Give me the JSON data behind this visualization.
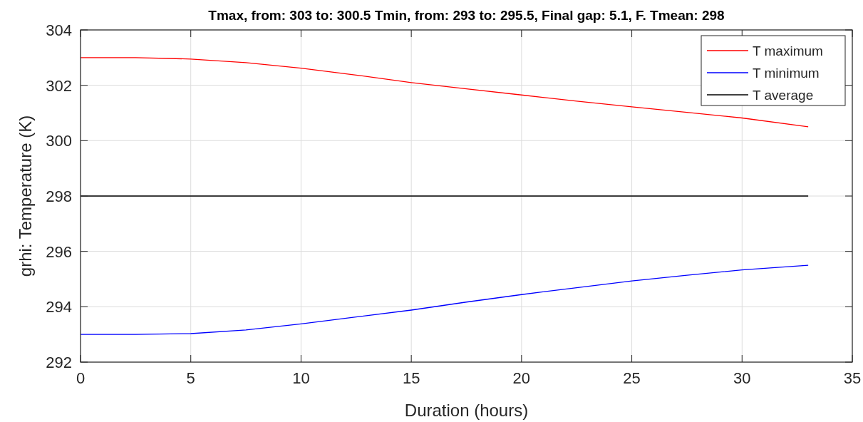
{
  "chart_data": {
    "type": "line",
    "title": "Tmax, from: 303 to: 300.5 Tmin, from: 293 to: 295.5, Final gap: 5.1, F. Tmean: 298",
    "xlabel": "Duration (hours)",
    "ylabel": "grhi: Temperature (K)",
    "x": [
      0,
      2.5,
      5,
      7.5,
      10,
      12.5,
      15,
      17.5,
      20,
      22.5,
      25,
      27.5,
      30,
      33
    ],
    "series": [
      {
        "name": "T maximum",
        "color": "#ff0000",
        "values": [
          303,
          303,
          302.95,
          302.82,
          302.62,
          302.37,
          302.1,
          301.87,
          301.65,
          301.43,
          301.22,
          301.02,
          300.82,
          300.5
        ]
      },
      {
        "name": "T minimum",
        "color": "#0000ff",
        "values": [
          293,
          293,
          293.03,
          293.16,
          293.38,
          293.63,
          293.88,
          294.17,
          294.44,
          294.69,
          294.93,
          295.14,
          295.33,
          295.5
        ]
      },
      {
        "name": "T average",
        "color": "#000000",
        "values": [
          298,
          298,
          298,
          298,
          298,
          298,
          298,
          298,
          298,
          298,
          298,
          298,
          298,
          298
        ]
      }
    ],
    "xlim": [
      0,
      35
    ],
    "xticks": [
      0,
      5,
      10,
      15,
      20,
      25,
      30,
      35
    ],
    "ylim": [
      292,
      304
    ],
    "yticks": [
      292,
      294,
      296,
      298,
      300,
      302,
      304
    ],
    "grid": true,
    "legend": "top right",
    "line_style": "solid",
    "marker": "none"
  }
}
